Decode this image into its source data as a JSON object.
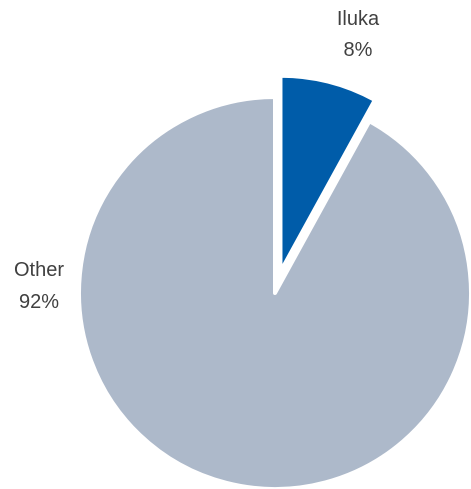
{
  "chart_data": {
    "type": "pie",
    "title": "",
    "start_angle": "12 o'clock, clockwise",
    "exploded": "Iluka",
    "legend": "none",
    "slices": [
      {
        "name": "Iluka",
        "value": 8,
        "label": "8%",
        "color": "#005CA9"
      },
      {
        "name": "Other",
        "value": 92,
        "label": "92%",
        "color": "#ADB9CA"
      }
    ]
  }
}
